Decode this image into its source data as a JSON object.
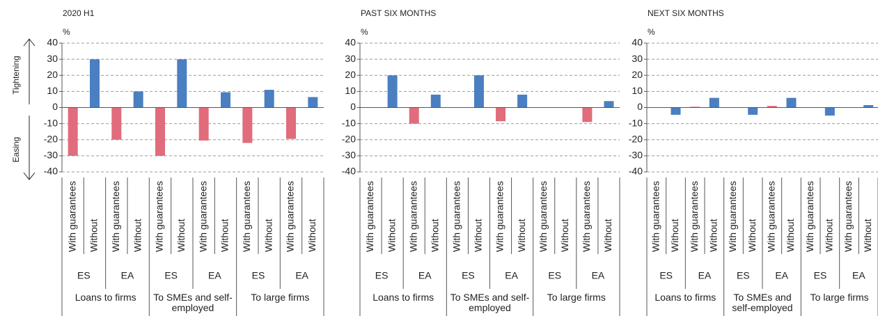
{
  "chart_data": [
    {
      "type": "bar",
      "title": "2020 H1",
      "y_label": "%",
      "annotations": [
        "Tightening",
        "Easing"
      ],
      "categories": [
        "With guarantees",
        "Without",
        "With guarantees",
        "Without",
        "With guarantees",
        "Without",
        "With guarantees",
        "Without",
        "With guarantees",
        "Without",
        "With guarantees",
        "Without"
      ],
      "groups": [
        "ES",
        "EA",
        "ES",
        "EA",
        "ES",
        "EA"
      ],
      "top_groups": [
        "Loans to firms",
        "To SMEs and self-employed",
        "To large firms"
      ],
      "values": [
        -30,
        30,
        -20,
        10,
        -30,
        30,
        -20.5,
        9.5,
        -22,
        11,
        -19.5,
        6.5
      ],
      "colors": [
        "#e06c7c",
        "#4a7fc1",
        "#e06c7c",
        "#4a7fc1",
        "#e06c7c",
        "#4a7fc1",
        "#e06c7c",
        "#4a7fc1",
        "#e06c7c",
        "#4a7fc1",
        "#e06c7c",
        "#4a7fc1"
      ],
      "ylim": [
        -40,
        40
      ],
      "yticks": [
        -40,
        -30,
        -20,
        -10,
        0,
        10,
        20,
        30,
        40
      ],
      "grid": true
    },
    {
      "type": "bar",
      "title": "PAST SIX MONTHS",
      "y_label": "%",
      "categories": [
        "With guarantees",
        "Without",
        "With guarantees",
        "Without",
        "With guarantees",
        "Without",
        "With guarantees",
        "Without",
        "With guarantees",
        "Without",
        "With guarantees",
        "Without"
      ],
      "groups": [
        "ES",
        "EA",
        "ES",
        "EA",
        "ES",
        "EA"
      ],
      "top_groups": [
        "Loans to firms",
        "To SMEs and self-employed",
        "To large firms"
      ],
      "values": [
        0,
        20,
        -10,
        8,
        0,
        20,
        -8.5,
        8,
        0,
        0,
        -9,
        4
      ],
      "colors": [
        "#e06c7c",
        "#4a7fc1",
        "#e06c7c",
        "#4a7fc1",
        "#e06c7c",
        "#4a7fc1",
        "#e06c7c",
        "#4a7fc1",
        "#e06c7c",
        "#4a7fc1",
        "#e06c7c",
        "#4a7fc1"
      ],
      "ylim": [
        -40,
        40
      ],
      "yticks": [
        -40,
        -30,
        -20,
        -10,
        0,
        10,
        20,
        30,
        40
      ],
      "grid": true
    },
    {
      "type": "bar",
      "title": "NEXT SIX MONTHS",
      "y_label": "%",
      "categories": [
        "With guarantees",
        "Without",
        "With guarantees",
        "Without",
        "With guarantees",
        "Without",
        "With guarantees",
        "Without",
        "With guarantees",
        "Without",
        "With guarantees",
        "Without"
      ],
      "groups": [
        "ES",
        "EA",
        "ES",
        "EA",
        "ES",
        "EA"
      ],
      "top_groups": [
        "Loans to firms",
        "To SMEs and self-employed",
        "To large firms"
      ],
      "values": [
        0,
        -4.5,
        0.5,
        6,
        0,
        -4.5,
        1,
        6,
        0,
        -5,
        0,
        1.5
      ],
      "colors": [
        "#e06c7c",
        "#4a7fc1",
        "#e06c7c",
        "#4a7fc1",
        "#e06c7c",
        "#4a7fc1",
        "#e06c7c",
        "#4a7fc1",
        "#e06c7c",
        "#4a7fc1",
        "#e06c7c",
        "#4a7fc1"
      ],
      "ylim": [
        -40,
        40
      ],
      "yticks": [
        -40,
        -30,
        -20,
        -10,
        0,
        10,
        20,
        30,
        40
      ],
      "grid": true
    }
  ]
}
